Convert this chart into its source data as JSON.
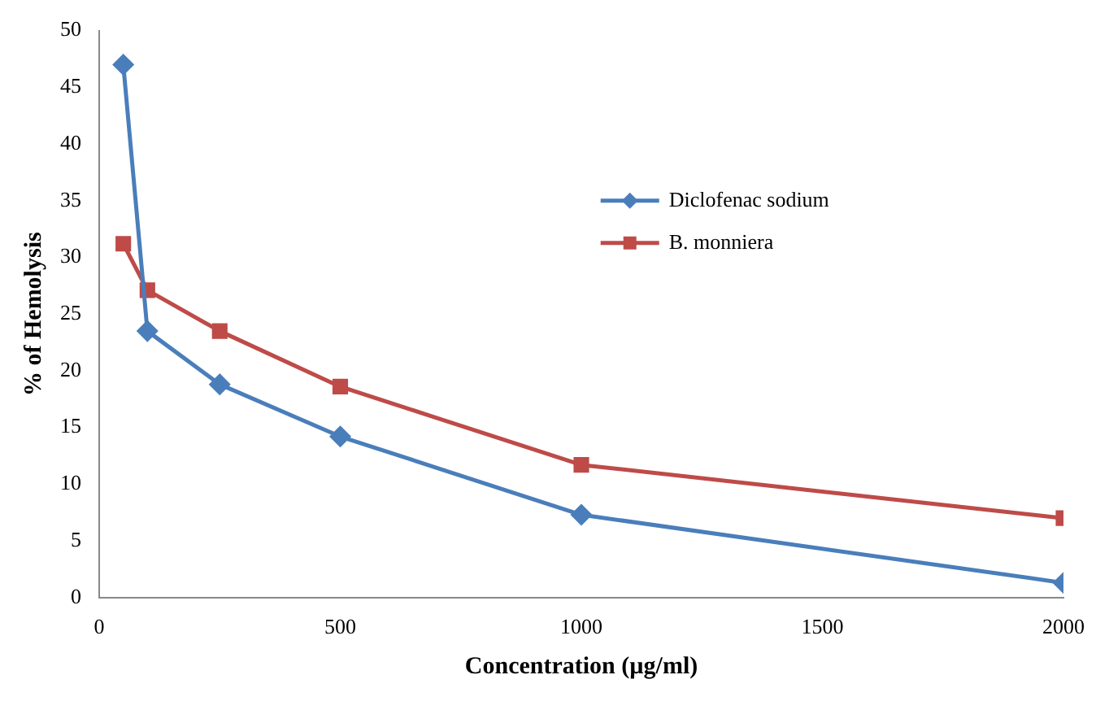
{
  "chart_data": {
    "type": "line",
    "xlabel": "Concentration (µg/ml)",
    "ylabel": "% of Hemolysis",
    "xlim": [
      0,
      2000
    ],
    "xticks": [
      0,
      500,
      1000,
      1500,
      2000
    ],
    "ylim": [
      0,
      50
    ],
    "yticks": [
      0,
      5,
      10,
      15,
      20,
      25,
      30,
      35,
      40,
      45,
      50
    ],
    "grid": false,
    "legend": "right",
    "series": [
      {
        "name": "Diclofenac sodium",
        "color": "#4a7ebb",
        "marker": "diamond",
        "x": [
          50,
          100,
          250,
          500,
          1000,
          2000
        ],
        "values": [
          47,
          23.5,
          18.8,
          14.2,
          7.3,
          1.3
        ]
      },
      {
        "name": "B. monniera",
        "color": "#be4b48",
        "marker": "square",
        "x": [
          50,
          100,
          250,
          500,
          1000,
          2000
        ],
        "values": [
          31.2,
          27.1,
          23.5,
          18.6,
          11.7,
          7
        ]
      }
    ]
  }
}
